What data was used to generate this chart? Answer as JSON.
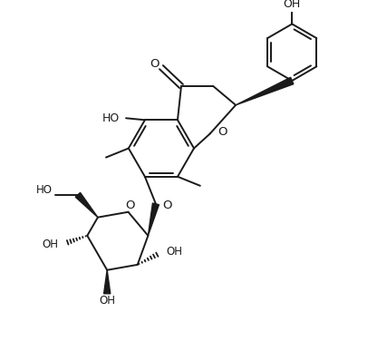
{
  "bg_color": "#ffffff",
  "bond_color": "#1a1a1a",
  "lw": 1.4,
  "fig_width": 4.16,
  "fig_height": 3.76,
  "dpi": 100,
  "xlim": [
    0,
    10
  ],
  "ylim": [
    0,
    9.05
  ]
}
